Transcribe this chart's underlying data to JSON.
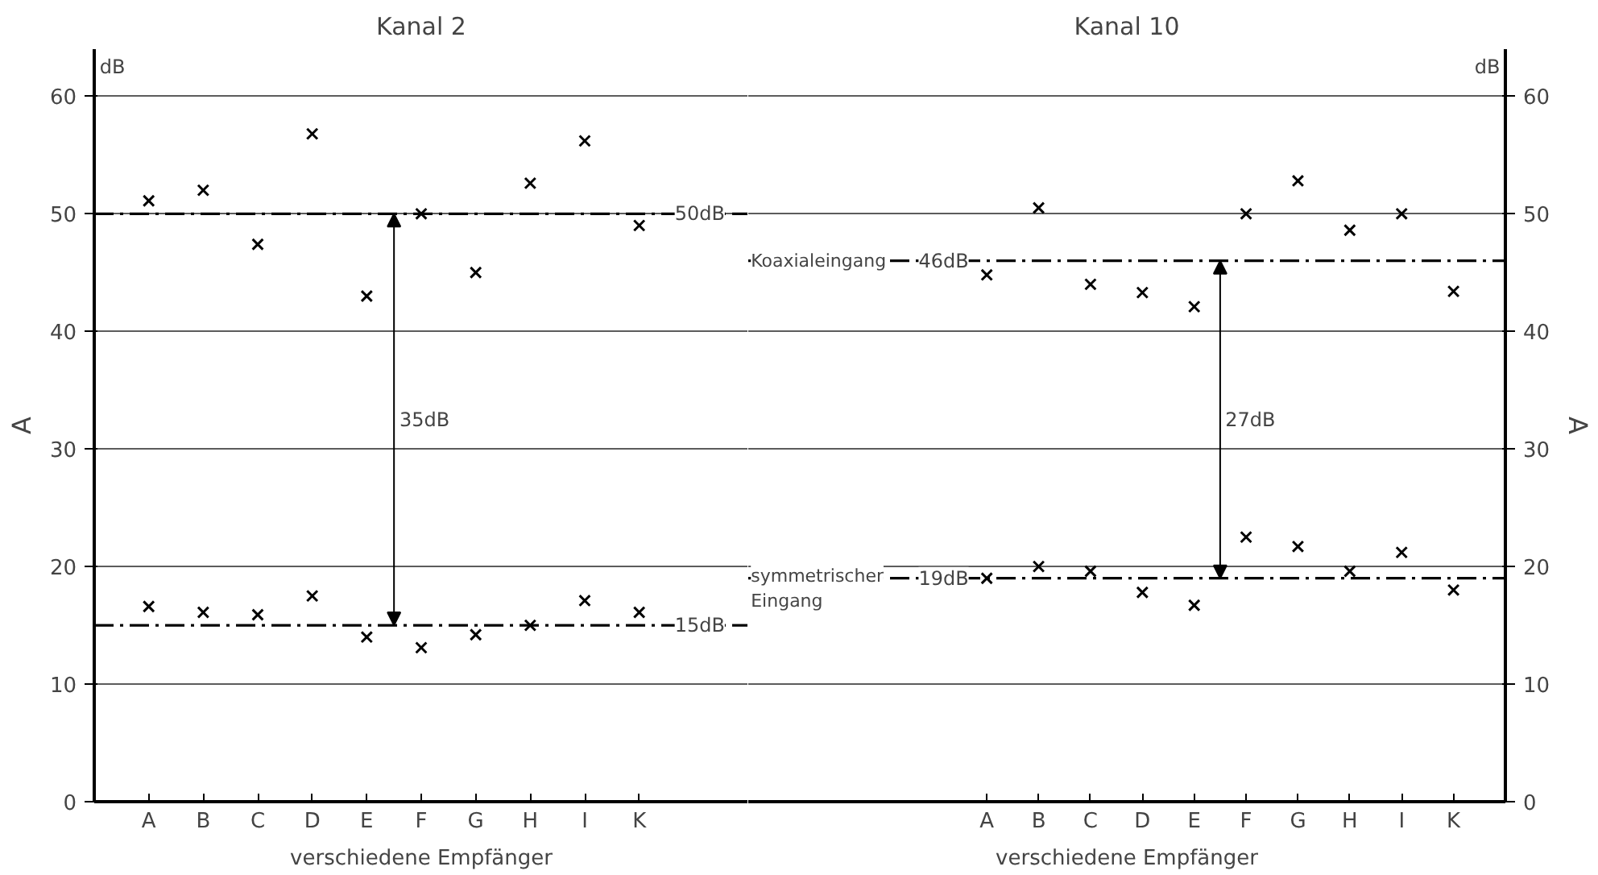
{
  "chart_data": [
    {
      "type": "scatter",
      "title": "Kanal 2",
      "xlabel": "verschiedene Empfänger",
      "ylabel": "A",
      "categories": [
        "A",
        "B",
        "C",
        "D",
        "E",
        "F",
        "G",
        "H",
        "I",
        "K"
      ],
      "ylim": [
        0,
        64
      ],
      "yticks": [
        0,
        10,
        20,
        30,
        40,
        50,
        60
      ],
      "grid": "y",
      "marker": "cross",
      "series": [
        {
          "color": "#000000",
          "values": [
            51.1,
            52,
            47.4,
            56.8,
            43,
            50,
            45,
            52.6,
            56.2,
            49
          ]
        },
        {
          "color": "#000000",
          "values": [
            16.6,
            16.1,
            15.9,
            17.5,
            14,
            13.1,
            14.2,
            15,
            17.1,
            16.1
          ]
        }
      ],
      "ref_lines": [
        {
          "axis": "y",
          "value": 50,
          "label": "50dB",
          "color": "#000000",
          "line_style": "dashed"
        },
        {
          "axis": "y",
          "value": 15,
          "label": "15dB",
          "color": "#000000",
          "line_style": "dashed"
        }
      ],
      "annotations": [
        "dB",
        "35dB"
      ]
    },
    {
      "type": "scatter",
      "title": "Kanal 10",
      "xlabel": "verschiedene Empfänger",
      "y2label": "A",
      "categories": [
        "A",
        "B",
        "C",
        "D",
        "E",
        "F",
        "G",
        "H",
        "I",
        "K"
      ],
      "y2lim": [
        0,
        64
      ],
      "y2ticks": [
        0,
        10,
        20,
        30,
        40,
        50,
        60
      ],
      "grid": "y",
      "marker": "cross",
      "series": [
        {
          "color": "#000000",
          "axis": "y2",
          "values": [
            44.8,
            50.5,
            44,
            43.3,
            42.1,
            50,
            52.8,
            48.6,
            50,
            43.4
          ]
        },
        {
          "color": "#000000",
          "axis": "y2",
          "values": [
            19,
            20,
            19.6,
            17.8,
            16.7,
            22.5,
            21.7,
            19.6,
            21.2,
            18
          ]
        }
      ],
      "ref_lines": [
        {
          "axis": "y2",
          "value": 46,
          "label": "46dB",
          "color": "#000000",
          "line_style": "dashed"
        },
        {
          "axis": "y2",
          "value": 19,
          "label": "19dB",
          "color": "#000000",
          "line_style": "dashed"
        }
      ],
      "annotations": [
        "dB",
        "27dB",
        "Koaxialeingang",
        "symmetrischer\nEingang"
      ]
    }
  ]
}
